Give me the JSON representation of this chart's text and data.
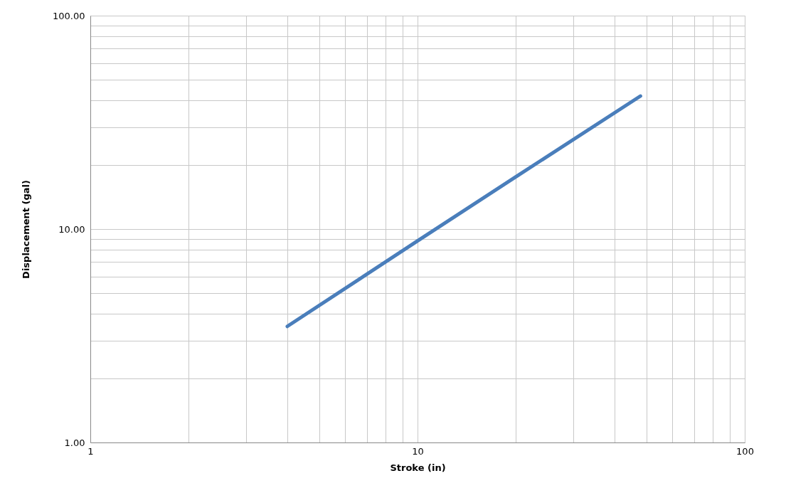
{
  "chart_data": {
    "type": "line",
    "xlabel": "Stroke (in)",
    "ylabel": "Displacement (gal)",
    "log": "xy",
    "grid": true,
    "marker": "none",
    "line_style": "solid",
    "x": [
      4,
      10,
      20,
      48
    ],
    "series": [
      {
        "color": "#4a7ebb",
        "values": [
          3.5,
          8.8,
          17.6,
          42
        ]
      }
    ],
    "xlim": [
      1,
      100
    ],
    "ylim": [
      1,
      100
    ],
    "xticks": [
      1,
      {
        "value": 2,
        "label": null
      },
      {
        "value": 3,
        "label": null
      },
      {
        "value": 4,
        "label": null
      },
      {
        "value": 5,
        "label": null
      },
      {
        "value": 6,
        "label": null
      },
      {
        "value": 7,
        "label": null
      },
      {
        "value": 8,
        "label": null
      },
      {
        "value": 9,
        "label": null
      },
      10,
      {
        "value": 20,
        "label": null
      },
      {
        "value": 30,
        "label": null
      },
      {
        "value": 40,
        "label": null
      },
      {
        "value": 50,
        "label": null
      },
      {
        "value": 60,
        "label": null
      },
      {
        "value": 70,
        "label": null
      },
      {
        "value": 80,
        "label": null
      },
      {
        "value": 90,
        "label": null
      },
      100
    ],
    "yticks": [
      {
        "value": 1,
        "label": "1.00"
      },
      {
        "value": 2,
        "label": null
      },
      {
        "value": 3,
        "label": null
      },
      {
        "value": 4,
        "label": null
      },
      {
        "value": 5,
        "label": null
      },
      {
        "value": 6,
        "label": null
      },
      {
        "value": 7,
        "label": null
      },
      {
        "value": 8,
        "label": null
      },
      {
        "value": 9,
        "label": null
      },
      {
        "value": 10,
        "label": "10.00"
      },
      {
        "value": 20,
        "label": null
      },
      {
        "value": 30,
        "label": null
      },
      {
        "value": 40,
        "label": null
      },
      {
        "value": 50,
        "label": null
      },
      {
        "value": 60,
        "label": null
      },
      {
        "value": 70,
        "label": null
      },
      {
        "value": 80,
        "label": null
      },
      {
        "value": 90,
        "label": null
      },
      {
        "value": 100,
        "label": "100.00"
      }
    ]
  }
}
